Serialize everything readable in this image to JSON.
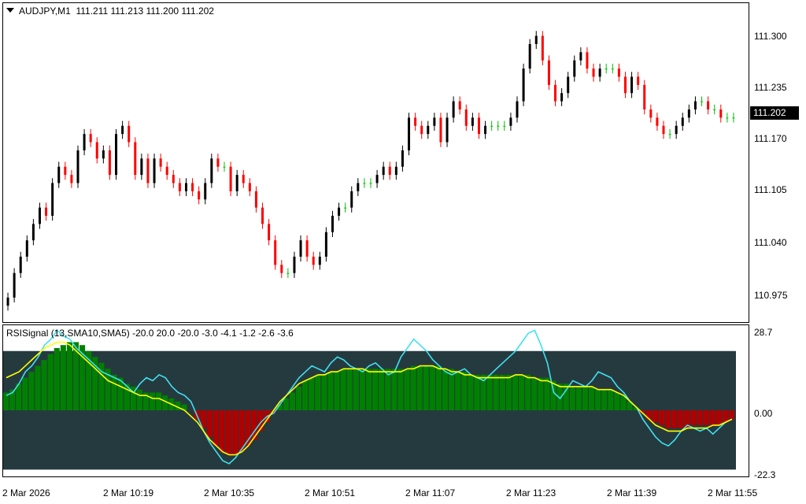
{
  "main_header": {
    "symbol": "AUDJPY,M1",
    "ohlc": "111.211 111.213 111.200 111.202",
    "dropdown_icon": "triangle-down-icon"
  },
  "price_axis": {
    "ticks": [
      "111.300",
      "111.235",
      "111.170",
      "111.105",
      "111.040",
      "110.975"
    ],
    "current_price": "111.202"
  },
  "indicator": {
    "header": "RSISignal (13,SMA10,SMA5) -20.0 20.0 -20.0 -3.0 -4.1 -1.2 -2.6 -3.6",
    "ticks": [
      "28.7",
      "0.00",
      "-22.3"
    ]
  },
  "time_axis": [
    "2 Mar 2026",
    "2 Mar 10:19",
    "2 Mar 10:35",
    "2 Mar 10:51",
    "2 Mar 11:07",
    "2 Mar 11:23",
    "2 Mar 11:39",
    "2 Mar 11:55"
  ],
  "colors": {
    "bull": "#000000",
    "bear": "#ff0000",
    "doji": "#00c000",
    "histo_pos": "#008000",
    "histo_neg": "#b00000",
    "rsi_line": "#40e0f0",
    "signal_line": "#ffff00",
    "band_bg": "#253a3f"
  },
  "chart_data": {
    "type": "candlestick",
    "price_range": [
      110.95,
      111.34
    ],
    "indicator_range": [
      -22.3,
      28.7
    ],
    "candles_close": [
      110.98,
      111.01,
      111.03,
      111.05,
      111.07,
      111.09,
      111.08,
      111.12,
      111.14,
      111.13,
      111.12,
      111.16,
      111.18,
      111.17,
      111.15,
      111.16,
      111.13,
      111.18,
      111.19,
      111.17,
      111.13,
      111.15,
      111.12,
      111.15,
      111.14,
      111.13,
      111.12,
      111.11,
      111.12,
      111.11,
      111.1,
      111.12,
      111.15,
      111.14,
      111.14,
      111.11,
      111.13,
      111.12,
      111.11,
      111.09,
      111.07,
      111.05,
      111.02,
      111.01,
      111.01,
      111.03,
      111.05,
      111.03,
      111.02,
      111.03,
      111.06,
      111.08,
      111.09,
      111.09,
      111.11,
      111.12,
      111.12,
      111.12,
      111.13,
      111.14,
      111.13,
      111.14,
      111.16,
      111.2,
      111.19,
      111.18,
      111.19,
      111.2,
      111.17,
      111.2,
      111.22,
      111.21,
      111.19,
      111.2,
      111.18,
      111.19,
      111.19,
      111.19,
      111.19,
      111.2,
      111.22,
      111.26,
      111.29,
      111.3,
      111.27,
      111.24,
      111.22,
      111.23,
      111.25,
      111.27,
      111.28,
      111.26,
      111.25,
      111.26,
      111.26,
      111.26,
      111.25,
      111.23,
      111.25,
      111.24,
      111.21,
      111.2,
      111.19,
      111.18,
      111.18,
      111.19,
      111.2,
      111.21,
      111.22,
      111.22,
      111.21,
      111.21,
      111.2,
      111.2,
      111.2
    ],
    "rsi": [
      5,
      6,
      9,
      13,
      15,
      18,
      22,
      24,
      27,
      25,
      24,
      21,
      19,
      17,
      15,
      13,
      12,
      11,
      10,
      8,
      6,
      9,
      11,
      10,
      12,
      11,
      8,
      6,
      5,
      3,
      -2,
      -7,
      -11,
      -14,
      -17,
      -18,
      -16,
      -13,
      -10,
      -7,
      -4,
      -2,
      -1,
      2,
      5,
      8,
      11,
      13,
      15,
      14,
      13,
      16,
      18,
      17,
      15,
      14,
      13,
      15,
      16,
      14,
      12,
      13,
      18,
      21,
      24,
      22,
      20,
      17,
      15,
      13,
      12,
      13,
      14,
      12,
      11,
      10,
      12,
      14,
      16,
      18,
      20,
      23,
      26,
      27,
      22,
      16,
      6,
      4,
      7,
      10,
      9,
      8,
      10,
      13,
      12,
      11,
      8,
      6,
      3,
      1,
      -3,
      -6,
      -9,
      -11,
      -12,
      -10,
      -7,
      -5,
      -6,
      -7,
      -6,
      -8,
      -6,
      -4,
      -3
    ],
    "signal": [
      11,
      12,
      13,
      15,
      17,
      19,
      21,
      22,
      23,
      23,
      22,
      20,
      18,
      16,
      14,
      12,
      10,
      9,
      8,
      7,
      6,
      5,
      5,
      4,
      4,
      3,
      2,
      1,
      0,
      -2,
      -4,
      -7,
      -10,
      -12,
      -14,
      -15,
      -15,
      -14,
      -12,
      -9,
      -6,
      -3,
      0,
      3,
      5,
      7,
      9,
      10,
      11,
      12,
      12,
      13,
      13,
      14,
      14,
      14,
      14,
      13,
      13,
      13,
      13,
      13,
      13,
      14,
      14,
      15,
      15,
      15,
      14,
      14,
      13,
      13,
      12,
      12,
      11,
      11,
      11,
      11,
      11,
      11,
      12,
      12,
      11,
      11,
      10,
      10,
      9,
      8,
      8,
      8,
      8,
      8,
      8,
      7,
      7,
      7,
      6,
      5,
      3,
      1,
      -1,
      -3,
      -5,
      -6,
      -7,
      -7,
      -7,
      -6,
      -6,
      -6,
      -6,
      -5,
      -5,
      -4,
      -3
    ],
    "histogram": [
      6,
      7,
      9,
      11,
      13,
      15,
      17,
      19,
      21,
      22,
      23,
      23,
      22,
      20,
      18,
      16,
      14,
      12,
      11,
      9,
      8,
      7,
      6,
      6,
      6,
      5,
      4,
      3,
      2,
      0,
      -3,
      -6,
      -9,
      -12,
      -14,
      -15,
      -15,
      -14,
      -12,
      -10,
      -7,
      -4,
      -1,
      2,
      4,
      6,
      8,
      10,
      11,
      12,
      12,
      13,
      13,
      14,
      14,
      14,
      14,
      14,
      14,
      14,
      14,
      14,
      14,
      14,
      15,
      15,
      15,
      15,
      15,
      14,
      14,
      13,
      13,
      12,
      12,
      12,
      12,
      12,
      12,
      12,
      12,
      12,
      12,
      11,
      11,
      11,
      10,
      9,
      9,
      8,
      8,
      8,
      8,
      7,
      7,
      7,
      6,
      5,
      3,
      1,
      -1,
      -3,
      -4,
      -5,
      -6,
      -6,
      -6,
      -6,
      -5,
      -5,
      -5,
      -5,
      -5,
      -4,
      -3
    ]
  }
}
